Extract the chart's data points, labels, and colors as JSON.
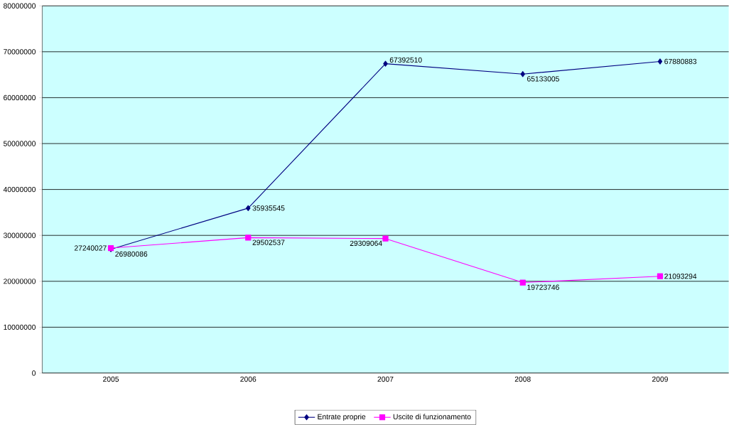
{
  "chart_data": {
    "type": "line",
    "categories": [
      "2005",
      "2006",
      "2007",
      "2008",
      "2009"
    ],
    "series": [
      {
        "name": "Entrate proprie",
        "color": "#000080",
        "marker": "diamond",
        "values": [
          26980086,
          35935545,
          67392510,
          65133005,
          67880883
        ]
      },
      {
        "name": "Uscite di funzionamento",
        "color": "#ff00ff",
        "marker": "square",
        "values": [
          27240027,
          29502537,
          29309064,
          19723746,
          21093294
        ]
      }
    ],
    "ylim": [
      0,
      80000000
    ],
    "yticks": [
      0,
      10000000,
      20000000,
      30000000,
      40000000,
      50000000,
      60000000,
      70000000,
      80000000
    ],
    "grid": "y",
    "legend": "bottom",
    "data_labels": true
  }
}
